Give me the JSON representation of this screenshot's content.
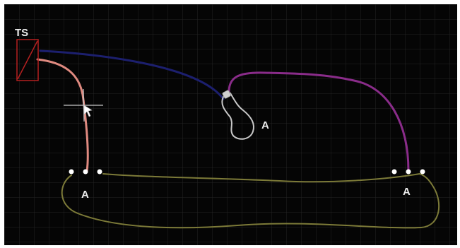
{
  "canvas": {
    "background": "#050505",
    "grid_color": "#242424"
  },
  "labels": {
    "switch_label": "TS",
    "lamp_label": "A",
    "left_terminal_label": "A",
    "right_terminal_label": "A"
  },
  "wires": {
    "switch_to_left_terminal": "#e08a80",
    "switch_to_lamp": "#1c1f6e",
    "lamp_to_right_terminal": "#8a2c8a",
    "terminal_loop": "#7c7a38"
  },
  "colors": {
    "switch_outline": "#b52020",
    "lamp_outline": "#c8c8c8",
    "terminal_dot": "#ffffff",
    "crosshair": "#c8c8c8",
    "label_text": "#ececec"
  },
  "icons": {
    "switch": "toggle-switch-icon",
    "lamp": "light-bulb-icon",
    "cursor": "crosshair-cursor-icon"
  }
}
